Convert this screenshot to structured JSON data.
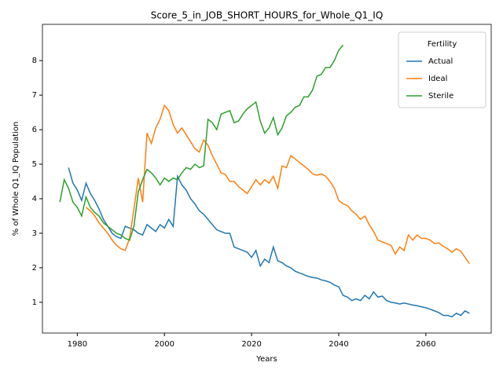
{
  "chart_data": {
    "type": "line",
    "title": "Score_5_in_JOB_SHORT_HOURS_for_Whole_Q1_IQ",
    "xlabel": "Years",
    "ylabel": "% of Whole Q1_IQ Population",
    "x": [
      1976,
      1977,
      1978,
      1979,
      1980,
      1981,
      1982,
      1983,
      1984,
      1985,
      1986,
      1987,
      1988,
      1989,
      1990,
      1991,
      1992,
      1993,
      1994,
      1995,
      1996,
      1997,
      1998,
      1999,
      2000,
      2001,
      2002,
      2003,
      2004,
      2005,
      2006,
      2007,
      2008,
      2009,
      2010,
      2011,
      2012,
      2013,
      2014,
      2015,
      2016,
      2017,
      2018,
      2019,
      2020,
      2021,
      2022,
      2023,
      2024,
      2025,
      2026,
      2027,
      2028,
      2029,
      2030,
      2031,
      2032,
      2033,
      2034,
      2035,
      2036,
      2037,
      2038,
      2039,
      2040,
      2041,
      2042,
      2043,
      2044,
      2045,
      2046,
      2047,
      2048,
      2049,
      2050,
      2051,
      2052,
      2053,
      2054,
      2055,
      2056,
      2057,
      2058,
      2059,
      2060,
      2061,
      2062,
      2063,
      2064,
      2065,
      2066,
      2067,
      2068,
      2069,
      2070
    ],
    "series": [
      {
        "name": "Actual",
        "color": "#1f77b4",
        "values": [
          null,
          null,
          4.9,
          4.45,
          4.25,
          3.95,
          4.45,
          4.15,
          3.95,
          3.7,
          3.4,
          3.2,
          3.0,
          2.9,
          2.85,
          3.2,
          3.15,
          3.1,
          3.0,
          2.95,
          3.25,
          3.15,
          3.05,
          3.25,
          3.15,
          3.4,
          3.2,
          4.65,
          4.4,
          4.25,
          4.0,
          3.85,
          3.65,
          3.55,
          3.4,
          3.25,
          3.1,
          3.05,
          3.0,
          3.0,
          2.6,
          2.55,
          2.5,
          2.45,
          2.3,
          2.5,
          2.05,
          2.25,
          2.15,
          2.6,
          2.2,
          2.15,
          2.05,
          2.0,
          1.9,
          1.85,
          1.8,
          1.75,
          1.72,
          1.7,
          1.65,
          1.62,
          1.58,
          1.5,
          1.45,
          1.2,
          1.15,
          1.05,
          1.1,
          1.05,
          1.2,
          1.1,
          1.3,
          1.15,
          1.18,
          1.05,
          1.0,
          0.98,
          0.95,
          0.98,
          0.95,
          0.92,
          0.9,
          0.87,
          0.84,
          0.8,
          0.75,
          0.7,
          0.62,
          0.62,
          0.58,
          0.68,
          0.62,
          0.75,
          0.68
        ]
      },
      {
        "name": "Ideal",
        "color": "#ff7f0e",
        "values": [
          null,
          null,
          null,
          null,
          null,
          null,
          3.75,
          3.65,
          3.5,
          3.3,
          3.15,
          3.0,
          2.8,
          2.65,
          2.55,
          2.5,
          2.85,
          3.7,
          4.6,
          3.9,
          5.9,
          5.6,
          6.05,
          6.3,
          6.7,
          6.55,
          6.15,
          5.9,
          6.05,
          5.85,
          5.65,
          5.45,
          5.35,
          5.7,
          5.55,
          5.25,
          5.0,
          4.75,
          4.7,
          4.5,
          4.5,
          4.35,
          4.25,
          4.15,
          4.35,
          4.55,
          4.4,
          4.55,
          4.45,
          4.65,
          4.3,
          4.95,
          4.9,
          5.25,
          5.15,
          5.05,
          4.95,
          4.85,
          4.72,
          4.68,
          4.72,
          4.65,
          4.5,
          4.3,
          3.95,
          3.85,
          3.8,
          3.65,
          3.55,
          3.4,
          3.5,
          3.25,
          3.05,
          2.8,
          2.75,
          2.7,
          2.65,
          2.4,
          2.6,
          2.5,
          2.95,
          2.8,
          2.95,
          2.85,
          2.85,
          2.8,
          2.7,
          2.72,
          2.62,
          2.55,
          2.45,
          2.55,
          2.48,
          2.3,
          2.12
        ]
      },
      {
        "name": "Sterile",
        "color": "#2ca02c",
        "values": [
          3.9,
          4.55,
          4.3,
          3.9,
          3.75,
          3.5,
          4.05,
          3.75,
          3.6,
          3.5,
          3.3,
          3.2,
          3.1,
          3.0,
          2.95,
          2.85,
          2.8,
          3.2,
          4.2,
          4.55,
          4.85,
          4.75,
          4.6,
          4.4,
          4.6,
          4.5,
          4.6,
          4.55,
          4.75,
          4.9,
          4.85,
          5.0,
          4.9,
          4.95,
          6.3,
          6.2,
          6.0,
          6.45,
          6.5,
          6.55,
          6.2,
          6.25,
          6.45,
          6.6,
          6.7,
          6.8,
          6.25,
          5.9,
          6.05,
          6.35,
          5.85,
          6.05,
          6.4,
          6.5,
          6.65,
          6.7,
          6.95,
          6.95,
          7.15,
          7.55,
          7.6,
          7.8,
          7.8,
          8.0,
          8.3,
          8.45,
          null,
          null,
          null,
          null,
          null,
          null,
          null,
          null,
          null,
          null,
          null,
          null,
          null,
          null,
          null,
          null,
          null,
          null,
          null,
          null,
          null,
          null,
          null,
          null,
          null,
          null,
          null,
          null,
          null
        ]
      }
    ],
    "xlim": [
      1972,
      2075
    ],
    "xticks": [
      1980,
      2000,
      2020,
      2040,
      2060
    ],
    "ylim": [
      0.11,
      9.05
    ],
    "yticks": [
      1,
      2,
      3,
      4,
      5,
      6,
      7,
      8
    ],
    "legend_title": "Fertility",
    "legend": "upper right"
  }
}
